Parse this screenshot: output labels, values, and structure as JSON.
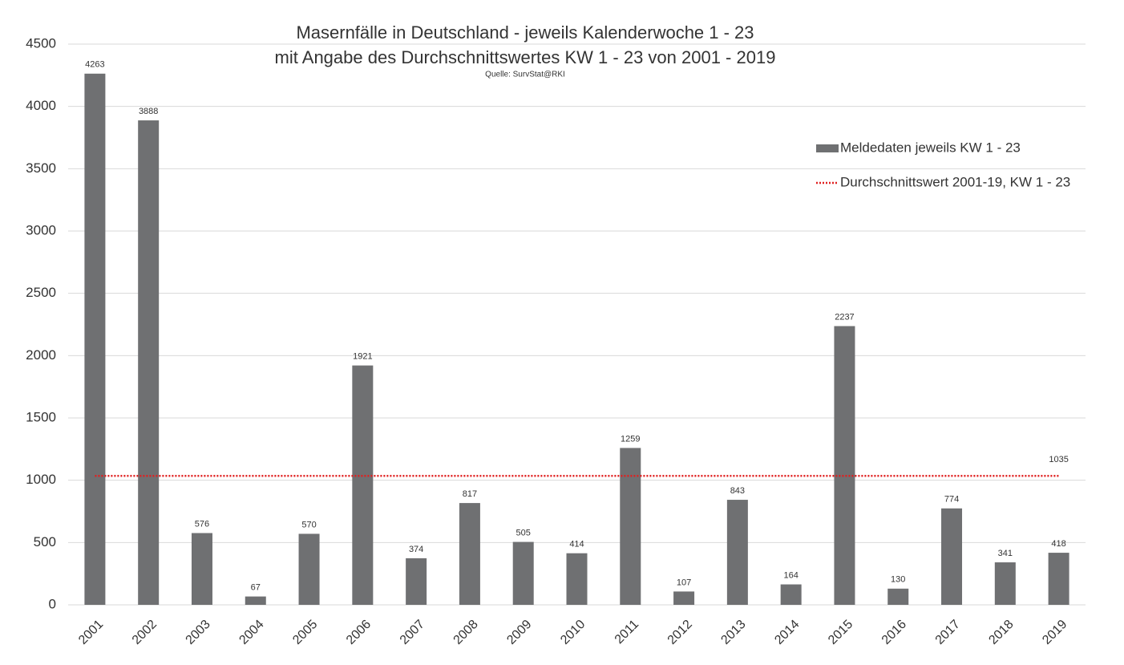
{
  "chart_data": {
    "type": "bar",
    "title": "Masernfälle in Deutschland - jeweils Kalenderwoche 1 - 23",
    "subtitle": "mit Angabe des Durchschnittswertes KW 1 - 23 von 2001 - 2019",
    "source": "Quelle: SurvStat@RKI",
    "categories": [
      "2001",
      "2002",
      "2003",
      "2004",
      "2005",
      "2006",
      "2007",
      "2008",
      "2009",
      "2010",
      "2011",
      "2012",
      "2013",
      "2014",
      "2015",
      "2016",
      "2017",
      "2018",
      "2019"
    ],
    "series": [
      {
        "name": "Meldedaten jeweils KW 1 - 23",
        "color": "#6f7072",
        "values": [
          4263,
          3888,
          576,
          67,
          570,
          1921,
          374,
          817,
          505,
          414,
          1259,
          107,
          843,
          164,
          2237,
          130,
          774,
          341,
          418
        ]
      }
    ],
    "average_line": {
      "name": "Durchschnittswert 2001-19, KW 1 - 23",
      "color": "#e02020",
      "value": 1035
    },
    "ylim": [
      0,
      4500
    ],
    "yticks": [
      0,
      500,
      1000,
      1500,
      2000,
      2500,
      3000,
      3500,
      4000,
      4500
    ],
    "grid": true,
    "legend": "right"
  }
}
